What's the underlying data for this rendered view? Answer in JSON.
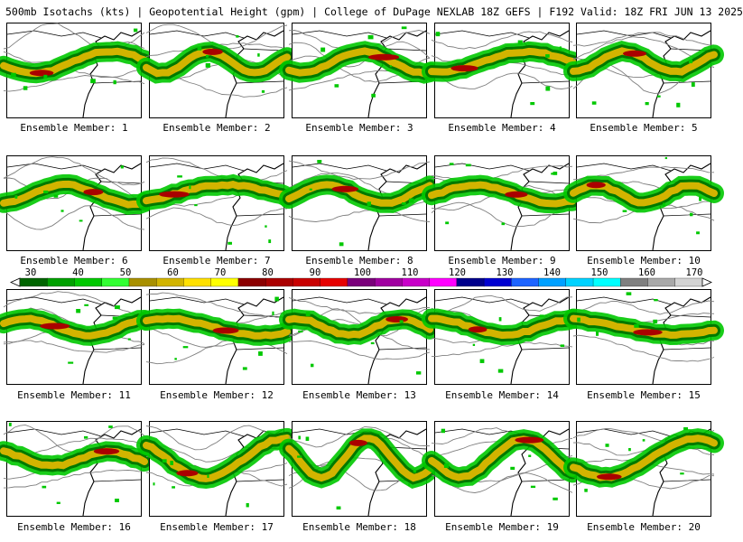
{
  "header": {
    "title": "500mb Isotachs (kts) | Geopotential Height (gpm) | College of DuPage NEXLAB   18Z GEFS | F192 Valid: 18Z FRI JUN 13 2025"
  },
  "legend": {
    "unit": "kts",
    "ticks": [
      "30",
      "40",
      "50",
      "60",
      "70",
      "80",
      "90",
      "100",
      "110",
      "120",
      "130",
      "140",
      "150",
      "160",
      "170"
    ],
    "colors": [
      "#006400",
      "#00a000",
      "#00c800",
      "#32ff32",
      "#a89000",
      "#d2b400",
      "#ffe000",
      "#ffff00",
      "#8b0000",
      "#aa0000",
      "#c80000",
      "#e60000",
      "#7a007a",
      "#a000a0",
      "#c800c8",
      "#ff00ff",
      "#00008b",
      "#0000d0",
      "#1e64ff",
      "#00a0ff",
      "#00d2ff",
      "#00ffff",
      "#808080",
      "#a9a9a9",
      "#d3d3d3"
    ]
  },
  "map_colors": {
    "land_outline": "#000000",
    "height_contour": "#7f7f7f",
    "isotach_light": "#00c800",
    "isotach_dark": "#007800",
    "jet_core_yellow": "#d2b400",
    "jet_core_red": "#aa0000"
  },
  "panels": [
    {
      "label": "Ensemble Member: 1"
    },
    {
      "label": "Ensemble Member: 2"
    },
    {
      "label": "Ensemble Member: 3"
    },
    {
      "label": "Ensemble Member: 4"
    },
    {
      "label": "Ensemble Member: 5"
    },
    {
      "label": "Ensemble Member: 6"
    },
    {
      "label": "Ensemble Member: 7"
    },
    {
      "label": "Ensemble Member: 8"
    },
    {
      "label": "Ensemble Member: 9"
    },
    {
      "label": "Ensemble Member: 10"
    },
    {
      "label": "Ensemble Member: 11"
    },
    {
      "label": "Ensemble Member: 12"
    },
    {
      "label": "Ensemble Member: 13"
    },
    {
      "label": "Ensemble Member: 14"
    },
    {
      "label": "Ensemble Member: 15"
    },
    {
      "label": "Ensemble Member: 16"
    },
    {
      "label": "Ensemble Member: 17"
    },
    {
      "label": "Ensemble Member: 18"
    },
    {
      "label": "Ensemble Member: 19"
    },
    {
      "label": "Ensemble Member: 20"
    }
  ]
}
